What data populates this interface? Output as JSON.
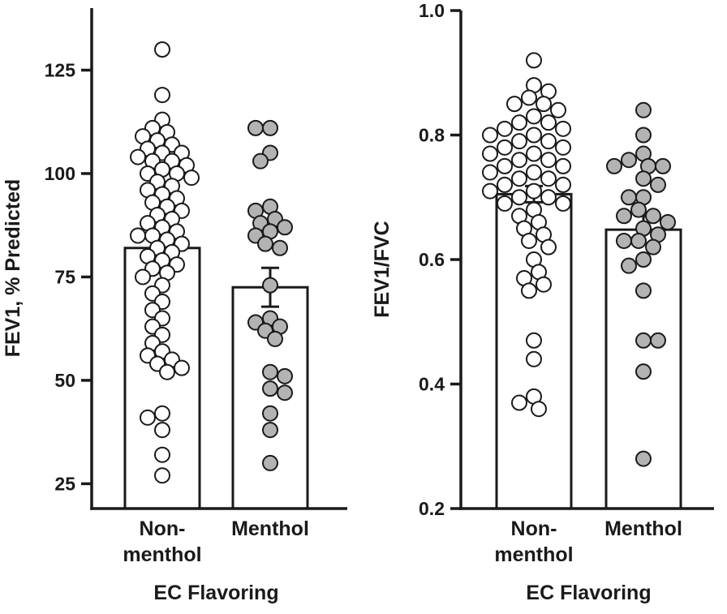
{
  "figure": {
    "background": "#ffffff",
    "description": "Two-panel dot plot with bars (mean ± SEM) comparing EC flavoring groups"
  },
  "colors": {
    "axis": "#1a1a1a",
    "point_stroke": "#1a1a1a",
    "bar_fill": "#ffffff",
    "non_menthol_fill": "#ffffff",
    "menthol_fill": "#b3b3b3"
  },
  "chart_data": [
    {
      "type": "scatter",
      "panel": "left",
      "title": "",
      "ylabel": "FEV1, % Predicted",
      "xlabel": "EC Flavoring",
      "ylim": [
        19,
        140
      ],
      "yticks": [
        25,
        50,
        75,
        100,
        125
      ],
      "ytick_decimals": 0,
      "grid": false,
      "legend": "none",
      "categories": [
        [
          "Non-",
          "menthol"
        ],
        [
          "Menthol"
        ]
      ],
      "series": [
        {
          "name": "Non-menthol",
          "mean": 82,
          "sem": 3,
          "fill": "#ffffff",
          "values": [
            130,
            119,
            113,
            111,
            110,
            109,
            108,
            107,
            106,
            105,
            105,
            104,
            103,
            103,
            102,
            101,
            100,
            100,
            99,
            98,
            97,
            96,
            95,
            94,
            93,
            92,
            91,
            90,
            89,
            88,
            87,
            86,
            85,
            85,
            84,
            83,
            82,
            81,
            80,
            79,
            78,
            77,
            76,
            75,
            73,
            71,
            69,
            67,
            65,
            63,
            61,
            59,
            57,
            56,
            55,
            54,
            53,
            52,
            42,
            41,
            38,
            32,
            27
          ]
        },
        {
          "name": "Menthol",
          "mean": 72.5,
          "sem": 4.7,
          "fill": "#b3b3b3",
          "values": [
            111,
            111,
            105,
            103,
            92,
            91,
            89,
            88,
            87,
            86,
            85,
            83,
            82,
            73,
            65,
            64,
            63,
            62,
            60,
            52,
            51,
            48,
            47,
            42,
            38,
            30
          ]
        }
      ]
    },
    {
      "type": "scatter",
      "panel": "right",
      "title": "",
      "ylabel": "FEV1/FVC",
      "xlabel": "EC Flavoring",
      "ylim": [
        0.2,
        1.0
      ],
      "yticks": [
        0.2,
        0.4,
        0.6,
        0.8,
        1.0
      ],
      "ytick_decimals": 1,
      "grid": false,
      "legend": "none",
      "categories": [
        [
          "Non-",
          "menthol"
        ],
        [
          "Menthol"
        ]
      ],
      "series": [
        {
          "name": "Non-menthol",
          "mean": 0.705,
          "sem": 0.013,
          "fill": "#ffffff",
          "values": [
            0.92,
            0.88,
            0.87,
            0.86,
            0.85,
            0.85,
            0.84,
            0.83,
            0.82,
            0.82,
            0.81,
            0.81,
            0.8,
            0.8,
            0.79,
            0.79,
            0.78,
            0.78,
            0.77,
            0.77,
            0.76,
            0.76,
            0.75,
            0.75,
            0.74,
            0.74,
            0.73,
            0.73,
            0.72,
            0.72,
            0.71,
            0.71,
            0.7,
            0.7,
            0.69,
            0.69,
            0.68,
            0.67,
            0.66,
            0.65,
            0.64,
            0.63,
            0.62,
            0.6,
            0.58,
            0.57,
            0.56,
            0.55,
            0.47,
            0.44,
            0.38,
            0.37,
            0.36
          ]
        },
        {
          "name": "Menthol",
          "mean": 0.648,
          "sem": 0.022,
          "fill": "#b3b3b3",
          "values": [
            0.84,
            0.8,
            0.77,
            0.76,
            0.75,
            0.75,
            0.75,
            0.73,
            0.72,
            0.7,
            0.7,
            0.68,
            0.67,
            0.67,
            0.66,
            0.65,
            0.64,
            0.63,
            0.63,
            0.62,
            0.6,
            0.59,
            0.55,
            0.47,
            0.47,
            0.42,
            0.28
          ]
        }
      ]
    }
  ]
}
